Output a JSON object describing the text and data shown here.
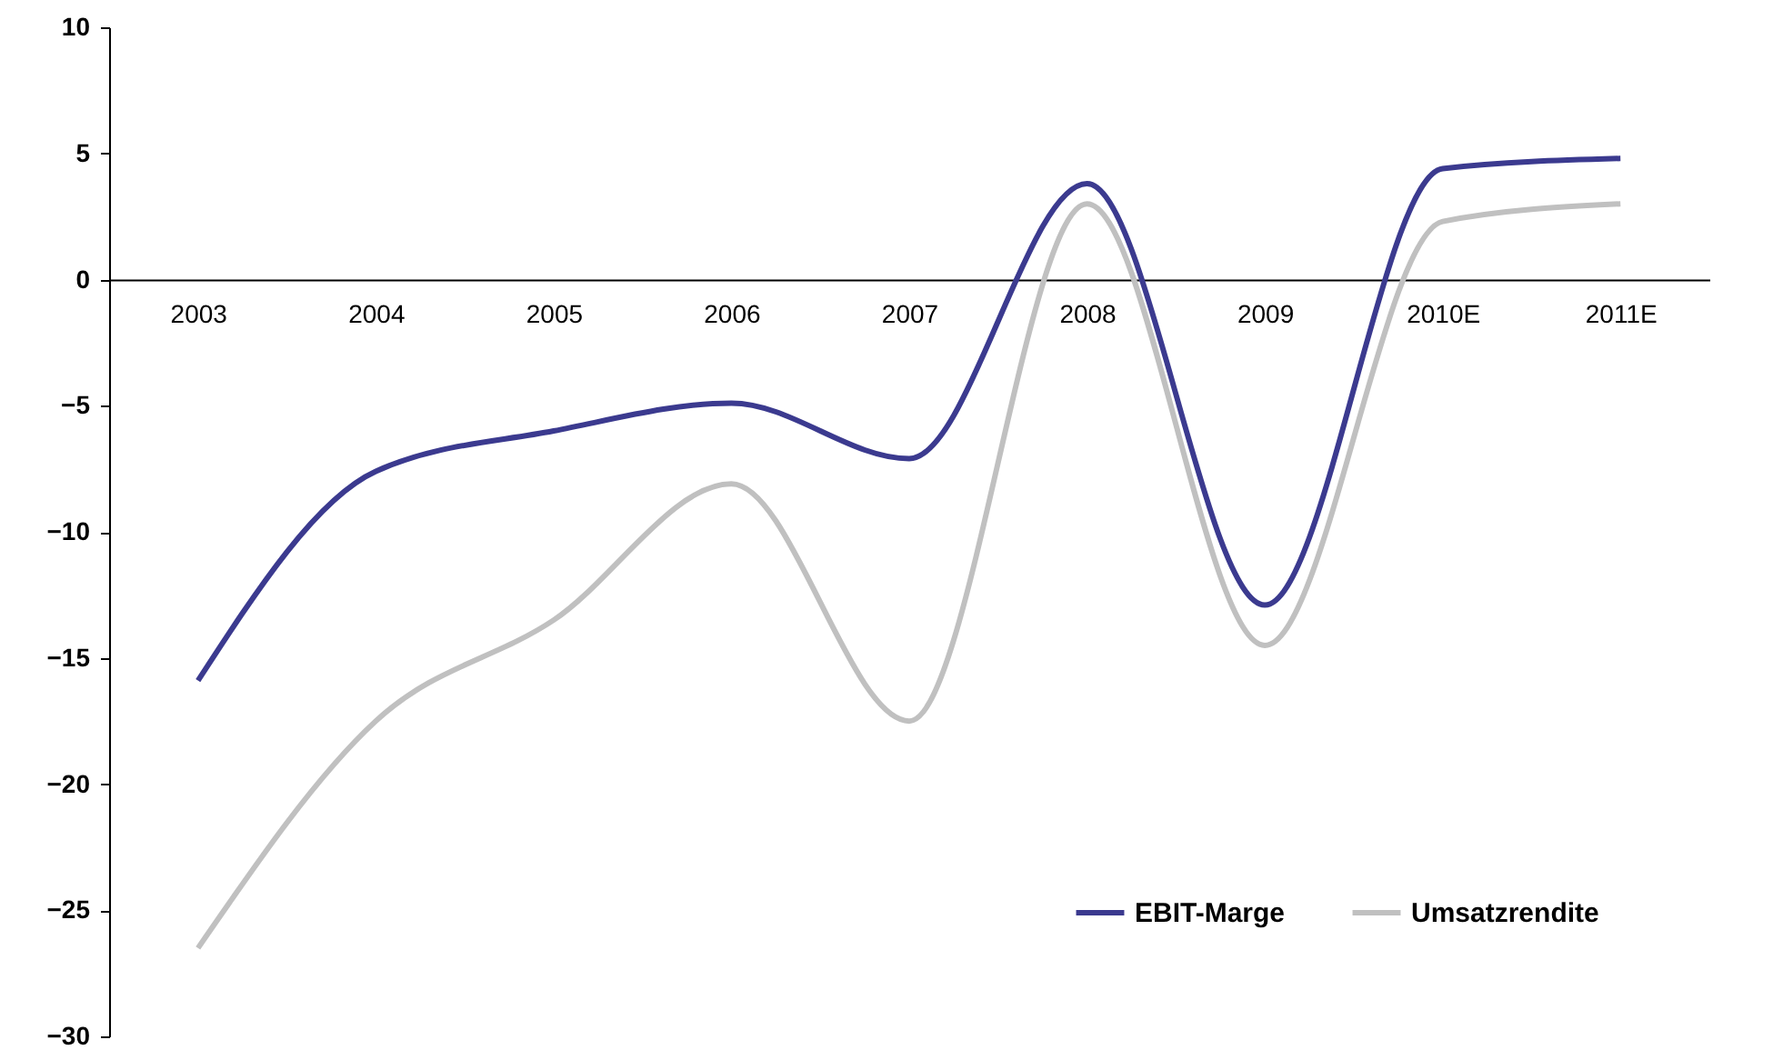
{
  "chart_data": {
    "type": "line",
    "categories": [
      "2003",
      "2004",
      "2005",
      "2006",
      "2007",
      "2008",
      "2009",
      "2010E",
      "2011E"
    ],
    "series": [
      {
        "name": "EBIT-Marge",
        "color": "#3b3a8f",
        "values": [
          -15.9,
          -7.6,
          -6.0,
          -4.9,
          -7.1,
          3.8,
          -12.9,
          4.4,
          4.8
        ]
      },
      {
        "name": "Umsatzrendite",
        "color": "#c0c0c0",
        "values": [
          -26.5,
          -17.5,
          -13.5,
          -8.1,
          -17.5,
          3.0,
          -14.5,
          2.3,
          3.0
        ]
      }
    ],
    "ylim": [
      -30,
      10
    ],
    "yticks": [
      -30,
      -25,
      -20,
      -15,
      -10,
      -5,
      0,
      5,
      10
    ],
    "grid": false,
    "legend": "bottom right",
    "marker": "none",
    "line_style": "solid"
  }
}
